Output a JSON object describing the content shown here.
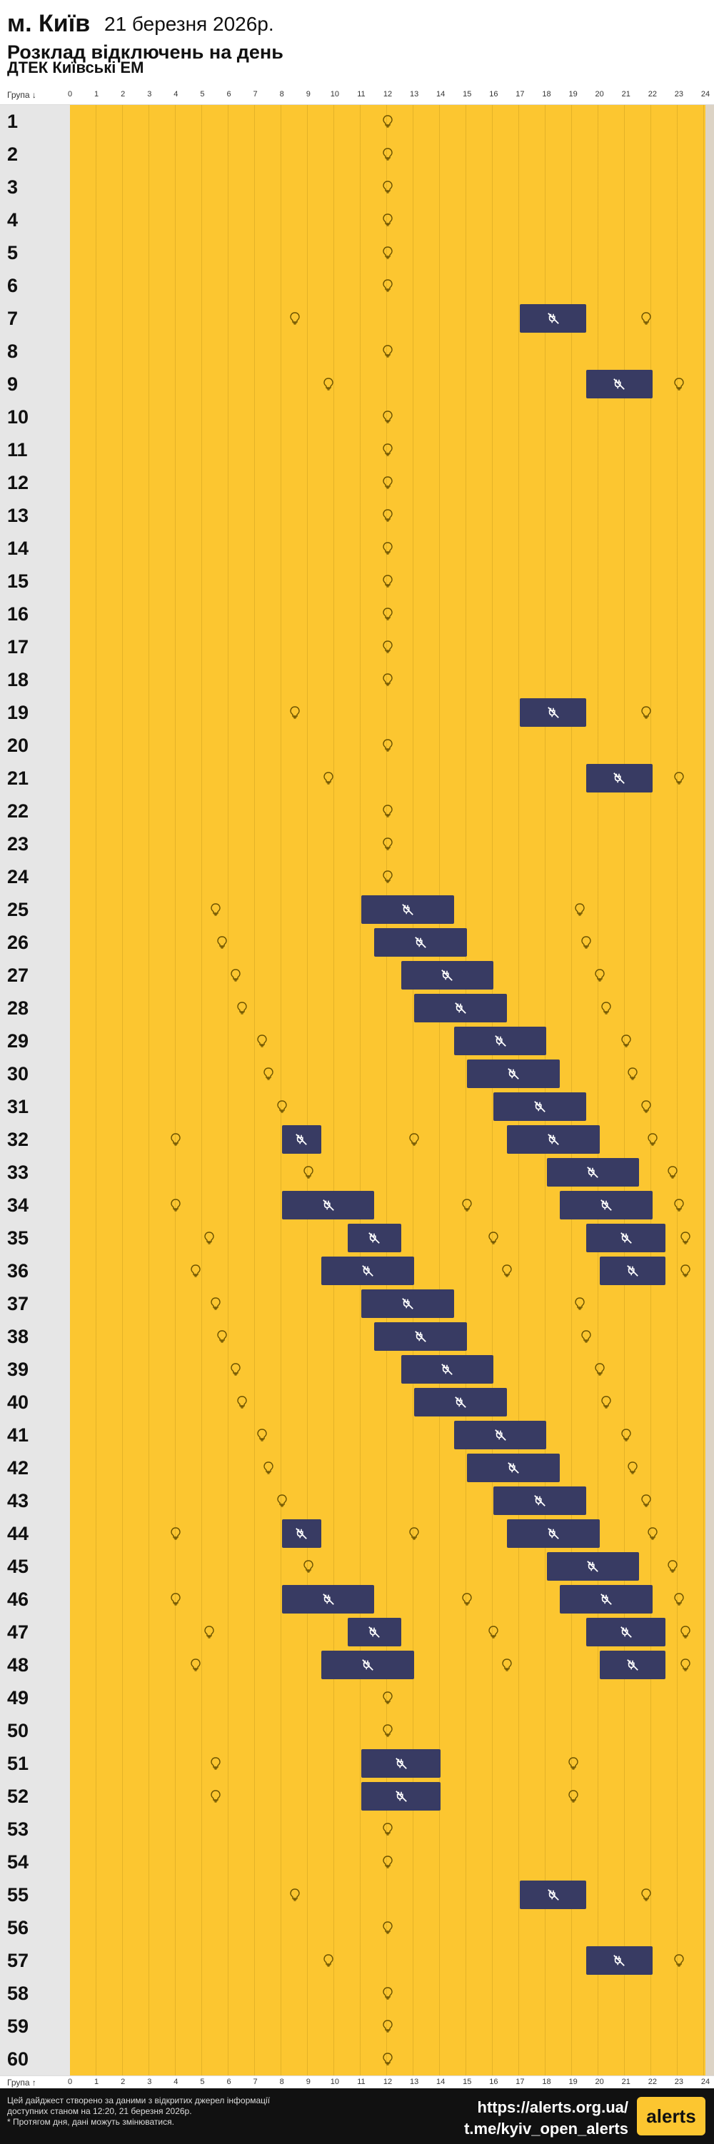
{
  "header": {
    "city": "м. Київ",
    "date": "21 березня 2026р.",
    "title": "Розклад відключень на день",
    "provider": "ДТЕК Київські ЕМ"
  },
  "axis": {
    "top_label": "Група ↓",
    "bottom_label": "Група ↑",
    "hours": [
      "0",
      "1",
      "2",
      "3",
      "4",
      "5",
      "6",
      "7",
      "8",
      "9",
      "10",
      "11",
      "12",
      "13",
      "14",
      "15",
      "16",
      "17",
      "18",
      "19",
      "20",
      "21",
      "22",
      "23",
      "24"
    ]
  },
  "schedule": {
    "groups": [
      {
        "label": "1",
        "outages": []
      },
      {
        "label": "2",
        "outages": []
      },
      {
        "label": "3",
        "outages": []
      },
      {
        "label": "4",
        "outages": []
      },
      {
        "label": "5",
        "outages": []
      },
      {
        "label": "6",
        "outages": []
      },
      {
        "label": "7",
        "outages": [
          [
            17,
            19.5
          ]
        ]
      },
      {
        "label": "8",
        "outages": []
      },
      {
        "label": "9",
        "outages": [
          [
            19.5,
            22
          ]
        ]
      },
      {
        "label": "10",
        "outages": []
      },
      {
        "label": "11",
        "outages": []
      },
      {
        "label": "12",
        "outages": []
      },
      {
        "label": "13",
        "outages": []
      },
      {
        "label": "14",
        "outages": []
      },
      {
        "label": "15",
        "outages": []
      },
      {
        "label": "16",
        "outages": []
      },
      {
        "label": "17",
        "outages": []
      },
      {
        "label": "18",
        "outages": []
      },
      {
        "label": "19",
        "outages": [
          [
            17,
            19.5
          ]
        ]
      },
      {
        "label": "20",
        "outages": []
      },
      {
        "label": "21",
        "outages": [
          [
            19.5,
            22
          ]
        ]
      },
      {
        "label": "22",
        "outages": []
      },
      {
        "label": "23",
        "outages": []
      },
      {
        "label": "24",
        "outages": []
      },
      {
        "label": "25",
        "outages": [
          [
            11,
            14.5
          ]
        ]
      },
      {
        "label": "26",
        "outages": [
          [
            11.5,
            15
          ]
        ]
      },
      {
        "label": "27",
        "outages": [
          [
            12.5,
            16
          ]
        ]
      },
      {
        "label": "28",
        "outages": [
          [
            13,
            16.5
          ]
        ]
      },
      {
        "label": "29",
        "outages": [
          [
            14.5,
            18
          ]
        ]
      },
      {
        "label": "30",
        "outages": [
          [
            15,
            18.5
          ]
        ]
      },
      {
        "label": "31",
        "outages": [
          [
            16,
            19.5
          ]
        ]
      },
      {
        "label": "32",
        "outages": [
          [
            8,
            9.5
          ],
          [
            16.5,
            20
          ]
        ]
      },
      {
        "label": "33",
        "outages": [
          [
            18,
            21.5
          ]
        ]
      },
      {
        "label": "34",
        "outages": [
          [
            8,
            11.5
          ],
          [
            18.5,
            22
          ]
        ]
      },
      {
        "label": "35",
        "outages": [
          [
            10.5,
            12.5
          ],
          [
            19.5,
            22.5
          ]
        ]
      },
      {
        "label": "36",
        "outages": [
          [
            9.5,
            13
          ],
          [
            20,
            22.5
          ]
        ]
      },
      {
        "label": "37",
        "outages": [
          [
            11,
            14.5
          ]
        ]
      },
      {
        "label": "38",
        "outages": [
          [
            11.5,
            15
          ]
        ]
      },
      {
        "label": "39",
        "outages": [
          [
            12.5,
            16
          ]
        ]
      },
      {
        "label": "40",
        "outages": [
          [
            13,
            16.5
          ]
        ]
      },
      {
        "label": "41",
        "outages": [
          [
            14.5,
            18
          ]
        ]
      },
      {
        "label": "42",
        "outages": [
          [
            15,
            18.5
          ]
        ]
      },
      {
        "label": "43",
        "outages": [
          [
            16,
            19.5
          ]
        ]
      },
      {
        "label": "44",
        "outages": [
          [
            8,
            9.5
          ],
          [
            16.5,
            20
          ]
        ]
      },
      {
        "label": "45",
        "outages": [
          [
            18,
            21.5
          ]
        ]
      },
      {
        "label": "46",
        "outages": [
          [
            8,
            11.5
          ],
          [
            18.5,
            22
          ]
        ]
      },
      {
        "label": "47",
        "outages": [
          [
            10.5,
            12.5
          ],
          [
            19.5,
            22.5
          ]
        ]
      },
      {
        "label": "48",
        "outages": [
          [
            9.5,
            13
          ],
          [
            20,
            22.5
          ]
        ]
      },
      {
        "label": "49",
        "outages": []
      },
      {
        "label": "50",
        "outages": []
      },
      {
        "label": "51",
        "outages": [
          [
            11,
            14
          ]
        ]
      },
      {
        "label": "52",
        "outages": [
          [
            11,
            14
          ]
        ]
      },
      {
        "label": "53",
        "outages": []
      },
      {
        "label": "54",
        "outages": []
      },
      {
        "label": "55",
        "outages": [
          [
            17,
            19.5
          ]
        ]
      },
      {
        "label": "56",
        "outages": []
      },
      {
        "label": "57",
        "outages": [
          [
            19.5,
            22
          ]
        ]
      },
      {
        "label": "58",
        "outages": []
      },
      {
        "label": "59",
        "outages": []
      },
      {
        "label": "60",
        "outages": []
      }
    ]
  },
  "footer": {
    "disclaimer_1": "Цей дайджест створено за даними з відкритих джерел інформації",
    "disclaimer_2": "доступних станом на 12:20, 21 березня 2026р.",
    "disclaimer_3": "* Протягом дня, дані можуть змінюватися.",
    "site": "https://alerts.org.ua/",
    "telegram": "t.me/kyiv_open_alerts",
    "logo": "alerts"
  },
  "colors": {
    "power_on": "#fcc630",
    "outage": "#383b63",
    "group_bg": "#e6e6e6",
    "icon": "#6b5200"
  },
  "icons": {
    "power_on": "lightbulb-icon",
    "outage": "power-off-icon"
  }
}
